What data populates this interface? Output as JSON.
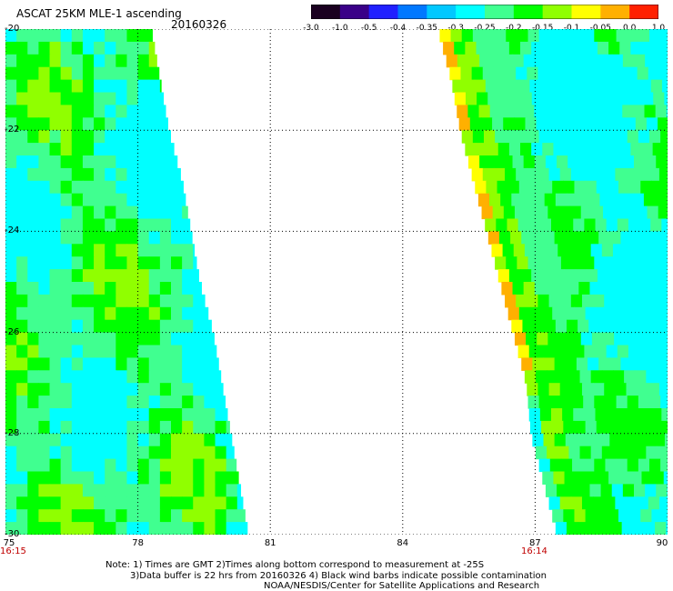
{
  "header": {
    "title": "ASCAT 25KM MLE-1 ascending",
    "date": "20160326"
  },
  "colorbar": {
    "labels": [
      "-3.0",
      "-1.0",
      "-0.5",
      "-0.4",
      "-0.35",
      "-0.3",
      "-0.25",
      "-0.2",
      "-0.15",
      "-0.1",
      "-0.05",
      "0.0",
      "1.0"
    ],
    "colors": [
      "#1a0020",
      "#3a0088",
      "#2020ff",
      "#0078ff",
      "#00c8ff",
      "#00ffff",
      "#40ff90",
      "#00ff00",
      "#90ff00",
      "#ffff00",
      "#ffb000",
      "#ff2000"
    ]
  },
  "axes": {
    "x_ticks": [
      "75",
      "78",
      "81",
      "84",
      "87",
      "90"
    ],
    "y_ticks": [
      "-20",
      "-22",
      "-24",
      "-26",
      "-28",
      "-30"
    ],
    "x_range": [
      75,
      90
    ],
    "y_range": [
      -20,
      -30
    ],
    "grid": "dotted"
  },
  "swaths": {
    "left": {
      "time": "16:15",
      "west_lon": 75,
      "east_edge": [
        [
          -20.0,
          78.3
        ],
        [
          -21.0,
          78.5
        ],
        [
          -22.0,
          78.7
        ],
        [
          -23.0,
          79.0
        ],
        [
          -24.0,
          79.2
        ],
        [
          -25.0,
          79.4
        ],
        [
          -26.0,
          79.7
        ],
        [
          -27.0,
          79.9
        ],
        [
          -28.0,
          80.1
        ],
        [
          -29.0,
          80.3
        ],
        [
          -30.0,
          80.5
        ]
      ]
    },
    "right": {
      "time": "16:14",
      "east_lon": 90,
      "west_edge": [
        [
          -20.0,
          84.8
        ],
        [
          -21.0,
          85.1
        ],
        [
          -22.0,
          85.3
        ],
        [
          -23.0,
          85.6
        ],
        [
          -24.0,
          85.9
        ],
        [
          -25.0,
          86.2
        ],
        [
          -26.0,
          86.5
        ],
        [
          -27.0,
          86.8
        ],
        [
          -28.0,
          86.9
        ],
        [
          -29.0,
          87.2
        ],
        [
          -30.0,
          87.5
        ]
      ]
    },
    "colors": {
      "cyan": "#00ffff",
      "aqua_green": "#40ff90",
      "green": "#00ff00",
      "yellow_green": "#90ff00",
      "yellow": "#ffff00",
      "orange": "#ffb000"
    }
  },
  "notes": {
    "line1": "Note: 1) Times are GMT 2)Times along bottom correspond to measurement at -25S",
    "line2": "3)Data buffer is 22 hrs from 20160326 4) Black wind barbs indicate possible contamination",
    "line3": "NOAA/NESDIS/Center for Satellite Applications and Research"
  }
}
